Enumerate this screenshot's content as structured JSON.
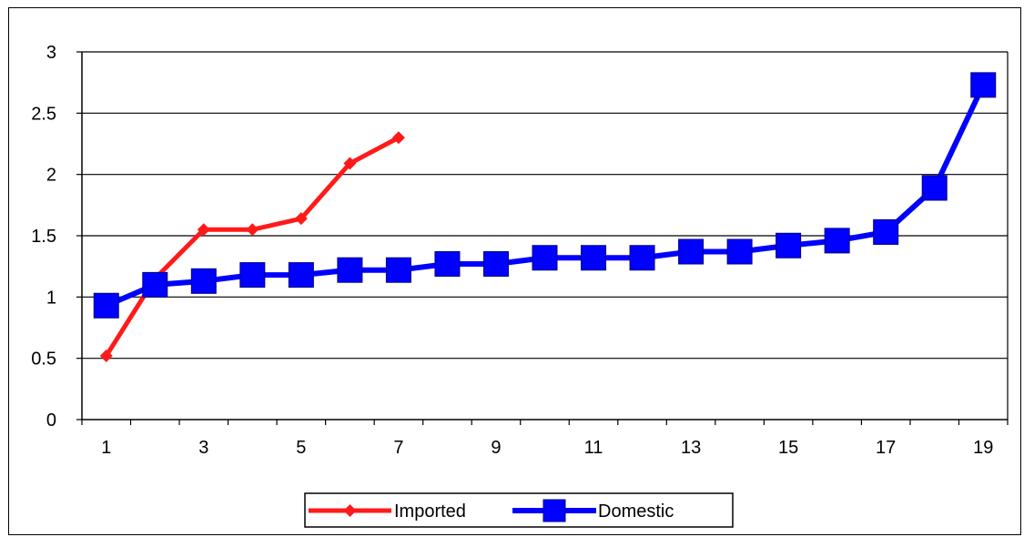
{
  "chart_data": {
    "type": "line",
    "title": "",
    "xlabel": "",
    "ylabel": "",
    "x_tick_labels": [
      "1",
      "3",
      "5",
      "7",
      "9",
      "11",
      "13",
      "15",
      "17",
      "19"
    ],
    "y_tick_labels": [
      "0",
      "0.5",
      "1",
      "1.5",
      "2",
      "2.5",
      "3"
    ],
    "xlim": [
      1,
      19
    ],
    "ylim": [
      0,
      3
    ],
    "y_major_unit": 0.5,
    "grid": "horizontal",
    "legend_position": "bottom",
    "series": [
      {
        "name": "Imported",
        "color": "#ff1a1a",
        "marker": "diamond",
        "x": [
          1,
          2,
          3,
          4,
          5,
          6,
          7
        ],
        "y": [
          0.52,
          1.15,
          1.55,
          1.55,
          1.64,
          2.09,
          2.3
        ]
      },
      {
        "name": "Domestic",
        "color": "#0000ff",
        "marker": "square",
        "x": [
          1,
          2,
          3,
          4,
          5,
          6,
          7,
          8,
          9,
          10,
          11,
          12,
          13,
          14,
          15,
          16,
          17,
          18,
          19
        ],
        "y": [
          0.93,
          1.1,
          1.13,
          1.18,
          1.18,
          1.22,
          1.22,
          1.27,
          1.27,
          1.32,
          1.32,
          1.32,
          1.37,
          1.37,
          1.42,
          1.46,
          1.53,
          1.89,
          2.73
        ]
      }
    ]
  }
}
